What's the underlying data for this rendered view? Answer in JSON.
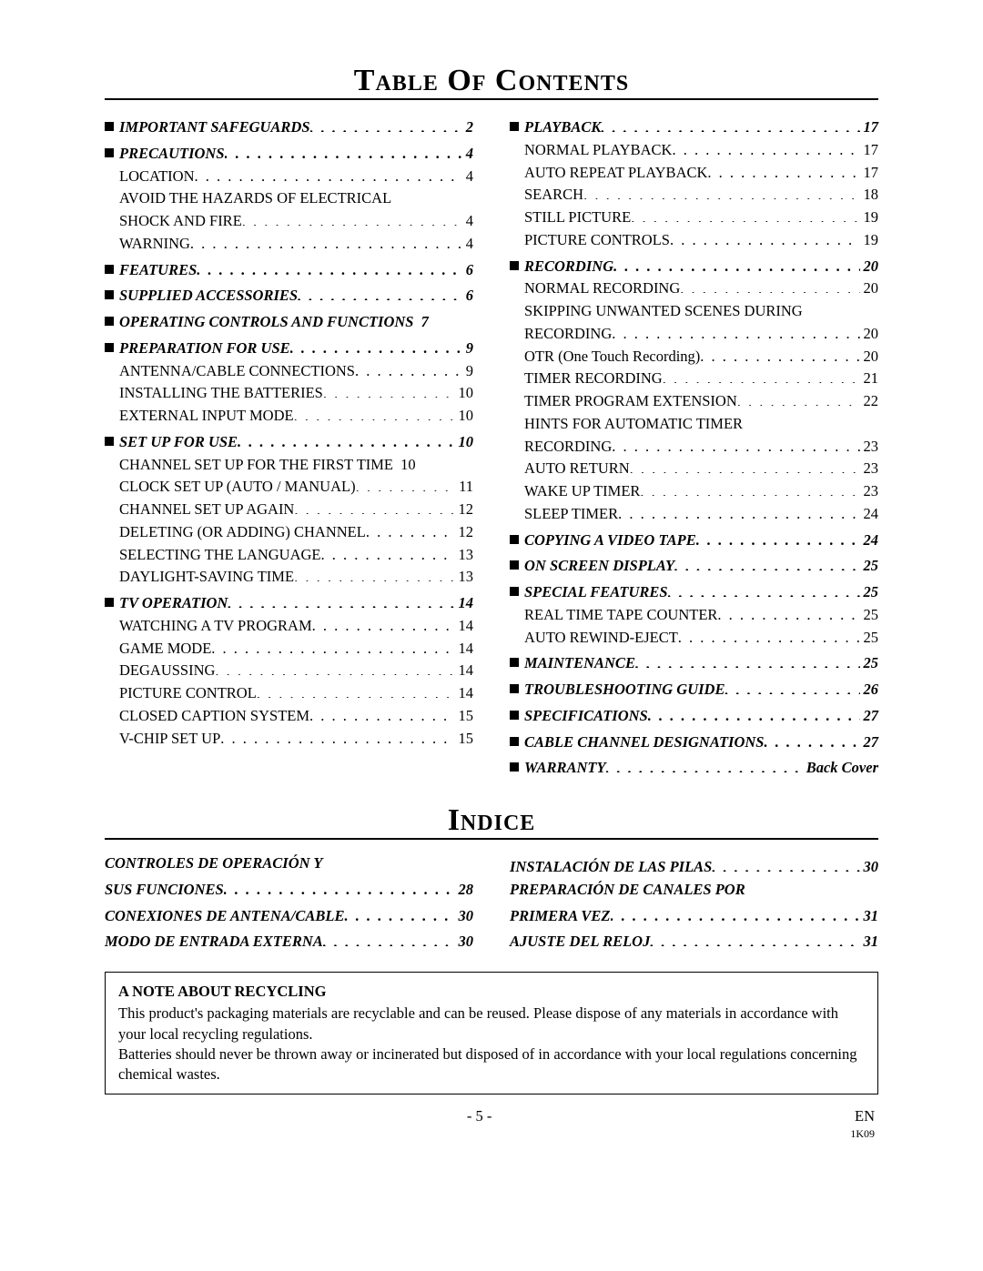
{
  "titles": {
    "toc": "Table Of Contents",
    "indice": "Indice"
  },
  "toc_left": [
    {
      "t": "section",
      "label": "IMPORTANT SAFEGUARDS",
      "page": "2"
    },
    {
      "t": "section",
      "label": "PRECAUTIONS",
      "page": "4"
    },
    {
      "t": "sub",
      "label": "LOCATION",
      "page": "4"
    },
    {
      "t": "cont",
      "label": "AVOID THE HAZARDS OF ELECTRICAL"
    },
    {
      "t": "sub",
      "label": "SHOCK AND FIRE",
      "page": "4"
    },
    {
      "t": "sub",
      "label": "WARNING",
      "page": "4"
    },
    {
      "t": "section",
      "label": "FEATURES",
      "page": "6"
    },
    {
      "t": "section",
      "label": "SUPPLIED ACCESSORIES",
      "page": "6"
    },
    {
      "t": "section",
      "label": "OPERATING CONTROLS AND FUNCTIONS",
      "page": "7",
      "noleader": true
    },
    {
      "t": "section",
      "label": "PREPARATION FOR USE",
      "page": "9"
    },
    {
      "t": "sub",
      "label": "ANTENNA/CABLE CONNECTIONS",
      "page": "9"
    },
    {
      "t": "sub",
      "label": "INSTALLING THE BATTERIES",
      "page": "10"
    },
    {
      "t": "sub",
      "label": "EXTERNAL INPUT MODE",
      "page": "10"
    },
    {
      "t": "section",
      "label": "SET UP FOR USE",
      "page": "10"
    },
    {
      "t": "sub",
      "label": "CHANNEL SET UP FOR THE FIRST TIME",
      "page": "10",
      "noleader": true
    },
    {
      "t": "sub",
      "label": "CLOCK SET UP (AUTO / MANUAL)",
      "page": "11"
    },
    {
      "t": "sub",
      "label": "CHANNEL SET UP AGAIN",
      "page": "12"
    },
    {
      "t": "sub",
      "label": "DELETING (OR ADDING) CHANNEL",
      "page": "12"
    },
    {
      "t": "sub",
      "label": "SELECTING THE LANGUAGE",
      "page": "13"
    },
    {
      "t": "sub",
      "label": "DAYLIGHT-SAVING TIME",
      "page": "13"
    },
    {
      "t": "section",
      "label": "TV OPERATION",
      "page": "14"
    },
    {
      "t": "sub",
      "label": "WATCHING A TV PROGRAM",
      "page": "14"
    },
    {
      "t": "sub",
      "label": "GAME MODE",
      "page": "14"
    },
    {
      "t": "sub",
      "label": "DEGAUSSING",
      "page": "14"
    },
    {
      "t": "sub",
      "label": "PICTURE CONTROL",
      "page": "14"
    },
    {
      "t": "sub",
      "label": "CLOSED CAPTION SYSTEM",
      "page": "15"
    },
    {
      "t": "sub",
      "label": "V-CHIP SET UP",
      "page": "15"
    }
  ],
  "toc_right": [
    {
      "t": "section",
      "label": "PLAYBACK",
      "page": "17"
    },
    {
      "t": "sub",
      "label": "NORMAL PLAYBACK",
      "page": "17"
    },
    {
      "t": "sub",
      "label": "AUTO REPEAT PLAYBACK",
      "page": "17"
    },
    {
      "t": "sub",
      "label": "SEARCH",
      "page": "18"
    },
    {
      "t": "sub",
      "label": "STILL PICTURE",
      "page": "19"
    },
    {
      "t": "sub",
      "label": "PICTURE CONTROLS",
      "page": "19"
    },
    {
      "t": "section",
      "label": "RECORDING",
      "page": "20"
    },
    {
      "t": "sub",
      "label": "NORMAL RECORDING",
      "page": "20"
    },
    {
      "t": "cont",
      "label": "SKIPPING UNWANTED SCENES DURING"
    },
    {
      "t": "sub",
      "label": "RECORDING",
      "page": "20"
    },
    {
      "t": "sub",
      "label": "OTR (One Touch Recording)",
      "page": "20"
    },
    {
      "t": "sub",
      "label": "TIMER RECORDING",
      "page": "21"
    },
    {
      "t": "sub",
      "label": "TIMER PROGRAM EXTENSION",
      "page": "22"
    },
    {
      "t": "cont",
      "label": "HINTS FOR AUTOMATIC TIMER"
    },
    {
      "t": "sub",
      "label": "RECORDING",
      "page": "23"
    },
    {
      "t": "sub",
      "label": "AUTO RETURN",
      "page": "23"
    },
    {
      "t": "sub",
      "label": "WAKE UP TIMER",
      "page": "23"
    },
    {
      "t": "sub",
      "label": "SLEEP TIMER",
      "page": "24"
    },
    {
      "t": "section",
      "label": "COPYING A VIDEO TAPE",
      "page": "24"
    },
    {
      "t": "section",
      "label": "ON SCREEN DISPLAY",
      "page": "25"
    },
    {
      "t": "section",
      "label": "SPECIAL FEATURES",
      "page": "25"
    },
    {
      "t": "sub",
      "label": "REAL TIME TAPE COUNTER",
      "page": "25"
    },
    {
      "t": "sub",
      "label": "AUTO REWIND-EJECT",
      "page": "25"
    },
    {
      "t": "section",
      "label": "MAINTENANCE",
      "page": "25"
    },
    {
      "t": "section",
      "label": "TROUBLESHOOTING GUIDE",
      "page": "26"
    },
    {
      "t": "section",
      "label": "SPECIFICATIONS",
      "page": "27"
    },
    {
      "t": "section",
      "label": "CABLE CHANNEL DESIGNATIONS",
      "page": "27"
    },
    {
      "t": "section",
      "label": "WARRANTY",
      "page": "Back Cover"
    }
  ],
  "indice_left": [
    {
      "t": "sectcont",
      "label": "CONTROLES DE OPERACIÓN Y"
    },
    {
      "t": "sectline",
      "label": "SUS FUNCIONES",
      "page": "28"
    },
    {
      "t": "sectline",
      "label": "CONEXIONES DE ANTENA/CABLE",
      "page": "30"
    },
    {
      "t": "sectline",
      "label": "MODO DE ENTRADA EXTERNA",
      "page": "30"
    }
  ],
  "indice_right": [
    {
      "t": "sectline",
      "label": "INSTALACIÓN DE LAS PILAS",
      "page": "30"
    },
    {
      "t": "sectcont",
      "label": "PREPARACIÓN DE CANALES POR"
    },
    {
      "t": "sectline",
      "label": "PRIMERA VEZ",
      "page": "31"
    },
    {
      "t": "sectline",
      "label": "AJUSTE DEL RELOJ",
      "page": "31"
    }
  ],
  "note": {
    "title": "A NOTE ABOUT RECYCLING",
    "p1": "This product's packaging materials are recyclable and can be reused. Please dispose of any materials in accordance with your local recycling regulations.",
    "p2": "Batteries should never be thrown away or incinerated but disposed of in accordance with your local regulations concerning chemical wastes."
  },
  "footer": {
    "page": "- 5 -",
    "lang": "EN",
    "code": "1K09"
  }
}
